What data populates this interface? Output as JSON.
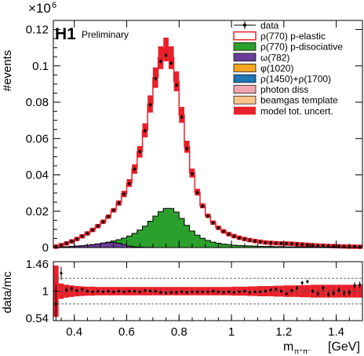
{
  "chart_data": [
    {
      "type": "histogram",
      "xlabel_main": "m",
      "xlabel_sub": "π⁺π⁻",
      "xlabel_unit": "[GeV]",
      "ylabel": "#events",
      "yexp": "×10",
      "yexp_power": "6",
      "experiment": "H1",
      "status": "Preliminary",
      "xlim": [
        0.32,
        1.5
      ],
      "ylim": [
        0,
        0.125
      ],
      "xticks": [
        0.4,
        0.6,
        0.8,
        1.0,
        1.2,
        1.4
      ],
      "xtick_labels": [
        "0.4",
        "0.6",
        "0.8",
        "1",
        "1.2",
        "1.4"
      ],
      "yticks": [
        0,
        0.02,
        0.04,
        0.06,
        0.08,
        0.1,
        0.12
      ],
      "ytick_labels": [
        "0",
        "0.02",
        "0.04",
        "0.06",
        "0.08",
        "0.1",
        "0.12"
      ],
      "bin_edges": [
        0.32,
        0.34,
        0.36,
        0.38,
        0.4,
        0.42,
        0.44,
        0.46,
        0.48,
        0.5,
        0.52,
        0.54,
        0.56,
        0.58,
        0.6,
        0.62,
        0.64,
        0.66,
        0.68,
        0.7,
        0.72,
        0.74,
        0.76,
        0.78,
        0.8,
        0.82,
        0.84,
        0.86,
        0.88,
        0.9,
        0.92,
        0.94,
        0.96,
        0.98,
        1.0,
        1.02,
        1.04,
        1.06,
        1.08,
        1.1,
        1.12,
        1.14,
        1.16,
        1.18,
        1.2,
        1.22,
        1.24,
        1.26,
        1.28,
        1.3,
        1.32,
        1.34,
        1.36,
        1.38,
        1.4,
        1.42,
        1.44,
        1.46,
        1.48,
        1.5
      ],
      "series": [
        {
          "name": "data",
          "style": "points",
          "values": [
            0.0005,
            0.0013,
            0.0023,
            0.0034,
            0.0047,
            0.0062,
            0.0077,
            0.0097,
            0.0118,
            0.0142,
            0.0171,
            0.0205,
            0.0245,
            0.0294,
            0.0352,
            0.0432,
            0.0527,
            0.0643,
            0.0786,
            0.093,
            0.1025,
            0.1058,
            0.1015,
            0.0894,
            0.0718,
            0.0545,
            0.0405,
            0.0302,
            0.0227,
            0.0173,
            0.0136,
            0.0108,
            0.0088,
            0.0073,
            0.0062,
            0.0053,
            0.0046,
            0.004,
            0.0035,
            0.0031,
            0.0027,
            0.0026,
            0.0024,
            0.0023,
            0.0022,
            0.0021,
            0.0019,
            0.0017,
            0.0015,
            0.0013,
            0.0011,
            0.001,
            0.0009,
            0.0008,
            0.0007,
            0.0006,
            0.0005,
            0.0005,
            0.0004
          ]
        },
        {
          "name": "ρ(770) p-elastic",
          "color": "#e8202a",
          "style": "outline",
          "values": [
            0.0005,
            0.0013,
            0.0023,
            0.0034,
            0.0047,
            0.0062,
            0.0078,
            0.0097,
            0.0118,
            0.0142,
            0.017,
            0.0205,
            0.0245,
            0.0295,
            0.0355,
            0.0432,
            0.0527,
            0.0645,
            0.079,
            0.0935,
            0.1045,
            0.109,
            0.1045,
            0.0915,
            0.073,
            0.0555,
            0.041,
            0.0305,
            0.023,
            0.0175,
            0.0137,
            0.0109,
            0.0089,
            0.0074,
            0.0063,
            0.0054,
            0.0047,
            0.0041,
            0.0036,
            0.0032,
            0.0028,
            0.0026,
            0.0024,
            0.0023,
            0.0022,
            0.0021,
            0.0019,
            0.0017,
            0.0015,
            0.0013,
            0.0011,
            0.001,
            0.0009,
            0.0008,
            0.0007,
            0.0006,
            0.0005,
            0.0005,
            0.0004
          ]
        },
        {
          "name": "ρ(770) p-disociative",
          "color": "#2ca02c",
          "style": "filled",
          "values": [
            0,
            0.0002,
            0.0004,
            0.0006,
            0.0008,
            0.001,
            0.0013,
            0.0016,
            0.002,
            0.0025,
            0.003,
            0.0036,
            0.0043,
            0.0052,
            0.0063,
            0.0078,
            0.0096,
            0.0118,
            0.0145,
            0.0173,
            0.0198,
            0.0215,
            0.0215,
            0.0195,
            0.016,
            0.0122,
            0.0091,
            0.0068,
            0.0051,
            0.0039,
            0.003,
            0.0024,
            0.0019,
            0.0016,
            0.0013,
            0.0011,
            0.001,
            0.0009,
            0.0008,
            0.0007,
            0.0006,
            0.0006,
            0.0005,
            0.0005,
            0.0004,
            0.0004,
            0.0004,
            0.0003,
            0.0003,
            0.0003,
            0.0002,
            0.0002,
            0.0002,
            0.0002,
            0.0001,
            0.0001,
            0.0001,
            0.0001,
            0.0001
          ]
        },
        {
          "name": "ω(782)",
          "color": "#6a3d9a",
          "style": "filled",
          "values": [
            0,
            0.0002,
            0.0004,
            0.0006,
            0.0008,
            0.001,
            0.0013,
            0.0016,
            0.002,
            0.0024,
            0.0027,
            0.0028,
            0.0024,
            0.0016,
            0.0008,
            0.0004,
            0.0002,
            0.0001,
            0.0001,
            0,
            0,
            0,
            0,
            0,
            0,
            0,
            0,
            0,
            0,
            0,
            0,
            0,
            0,
            0,
            0,
            0,
            0,
            0,
            0,
            0,
            0,
            0,
            0,
            0,
            0,
            0,
            0,
            0,
            0,
            0,
            0,
            0,
            0,
            0,
            0,
            0,
            0,
            0,
            0
          ]
        },
        {
          "name": "φ(1020)",
          "color": "#f5a623",
          "style": "filled",
          "values": []
        },
        {
          "name": "ρ(1450)+ρ(1700)",
          "color": "#1f77b4",
          "style": "filled",
          "values": []
        },
        {
          "name": "photon diss",
          "color": "#f4a6b0",
          "style": "filled",
          "values": []
        },
        {
          "name": "beamgas template",
          "color": "#fbc58a",
          "style": "filled",
          "values": []
        },
        {
          "name": "model tot. uncert.",
          "color": "#e8202a",
          "style": "band",
          "values": []
        }
      ],
      "legend": "top-right"
    },
    {
      "type": "ratio",
      "ylabel": "data/mc",
      "ylim": [
        0.54,
        1.46
      ],
      "yticks": [
        0.54,
        1,
        1.46
      ],
      "ytick_labels": [
        "0.54",
        "1",
        "1.46"
      ],
      "dashed_lines": [
        1.2,
        1.0,
        0.8
      ],
      "ratio_values": [
        0.8,
        1.28,
        1.02,
        1.04,
        1.01,
        1.03,
        1.0,
        0.99,
        1.0,
        0.99,
        1.0,
        0.99,
        1.0,
        0.99,
        1.0,
        1.0,
        0.99,
        1.01,
        1.0,
        1.0,
        0.98,
        0.97,
        0.98,
        0.98,
        0.99,
        0.98,
        0.99,
        0.99,
        0.99,
        0.99,
        1.0,
        0.99,
        0.98,
        0.99,
        0.98,
        0.99,
        1.0,
        0.98,
        0.99,
        0.99,
        1.0,
        1.02,
        1.03,
        1.0,
        0.96,
        1.01,
        1.05,
        1.13,
        1.15,
        1.0,
        0.96,
        1.05,
        0.95,
        0.97,
        1.02,
        0.97,
        0.98,
        1.09,
        1.1
      ],
      "ratio_errors": [
        0.3,
        0.1,
        0.04,
        0.03,
        0.02,
        0.02,
        0.015,
        0.015,
        0.012,
        0.012,
        0.01,
        0.01,
        0.01,
        0.01,
        0.01,
        0.01,
        0.01,
        0.01,
        0.01,
        0.01,
        0.01,
        0.01,
        0.01,
        0.01,
        0.01,
        0.01,
        0.01,
        0.01,
        0.01,
        0.01,
        0.01,
        0.012,
        0.012,
        0.012,
        0.015,
        0.015,
        0.015,
        0.02,
        0.02,
        0.02,
        0.02,
        0.02,
        0.02,
        0.025,
        0.025,
        0.025,
        0.03,
        0.03,
        0.03,
        0.03,
        0.035,
        0.04,
        0.04,
        0.04,
        0.04,
        0.045,
        0.05,
        0.05,
        0.05
      ],
      "uncert_band": [
        0.4,
        0.12,
        0.1,
        0.09,
        0.08,
        0.075,
        0.07,
        0.07,
        0.065,
        0.065,
        0.065,
        0.065,
        0.065,
        0.065,
        0.065,
        0.065,
        0.065,
        0.065,
        0.065,
        0.065,
        0.065,
        0.065,
        0.065,
        0.065,
        0.065,
        0.065,
        0.065,
        0.065,
        0.065,
        0.065,
        0.065,
        0.065,
        0.065,
        0.065,
        0.07,
        0.07,
        0.07,
        0.075,
        0.075,
        0.08,
        0.08,
        0.08,
        0.085,
        0.085,
        0.09,
        0.09,
        0.09,
        0.095,
        0.095,
        0.1,
        0.1,
        0.1,
        0.1,
        0.1,
        0.1,
        0.1,
        0.1,
        0.1,
        0.1
      ]
    }
  ]
}
